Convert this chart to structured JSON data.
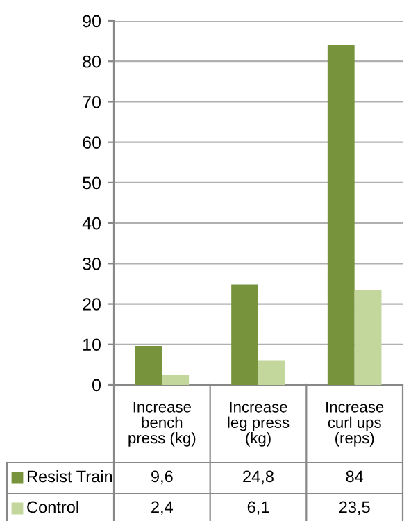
{
  "chart_data": {
    "type": "bar",
    "categories": [
      "Increase bench press (kg)",
      "Increase leg press (kg)",
      "Increase curl ups (reps)"
    ],
    "series": [
      {
        "name": "Resist Train",
        "color": "#77933c",
        "values": [
          9.6,
          24.8,
          84
        ],
        "value_labels": [
          "9,6",
          "24,8",
          "84"
        ]
      },
      {
        "name": "Control",
        "color": "#c3d69b",
        "values": [
          2.4,
          6.1,
          23.5
        ],
        "value_labels": [
          "2,4",
          "6,1",
          "23,5"
        ]
      }
    ],
    "ylim": [
      0,
      90
    ],
    "yticks": [
      0,
      10,
      20,
      30,
      40,
      50,
      60,
      70,
      80,
      90
    ],
    "grid": "y",
    "legend": "bottom"
  }
}
